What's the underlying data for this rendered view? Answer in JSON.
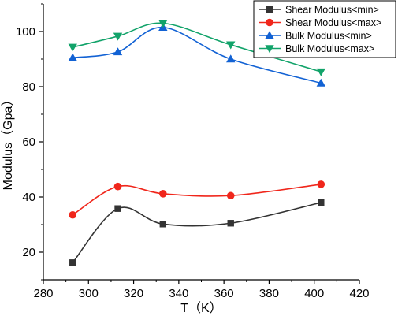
{
  "chart_data": {
    "type": "line",
    "xlabel": "T（K）",
    "ylabel": "Modulus（Gpa）",
    "xlim": [
      280,
      420
    ],
    "ylim": [
      10,
      110
    ],
    "xticks": [
      280,
      300,
      320,
      340,
      360,
      380,
      400,
      420
    ],
    "yticks": [
      20,
      40,
      60,
      80,
      100
    ],
    "grid": false,
    "legend_position": "top-right",
    "series": [
      {
        "name": "Shear Modulus<min>",
        "color": "#333333",
        "marker": "square",
        "x": [
          293,
          313,
          333,
          363,
          403
        ],
        "y": [
          16.2,
          35.8,
          30.2,
          30.5,
          38
        ]
      },
      {
        "name": "Shear Modulus<max>",
        "color": "#f0261b",
        "marker": "circle",
        "x": [
          293,
          313,
          333,
          363,
          403
        ],
        "y": [
          33.5,
          43.8,
          41.2,
          40.5,
          44.6
        ]
      },
      {
        "name": "Bulk Modulus<min>",
        "color": "#1262d4",
        "marker": "triangle-up",
        "x": [
          293,
          313,
          333,
          363,
          403
        ],
        "y": [
          90.5,
          92.6,
          101.5,
          90,
          81.3
        ]
      },
      {
        "name": "Bulk Modulus<max>",
        "color": "#12a36a",
        "marker": "triangle-down",
        "x": [
          293,
          313,
          333,
          363,
          403
        ],
        "y": [
          94.3,
          98.3,
          103,
          95.2,
          85.4
        ]
      }
    ]
  }
}
